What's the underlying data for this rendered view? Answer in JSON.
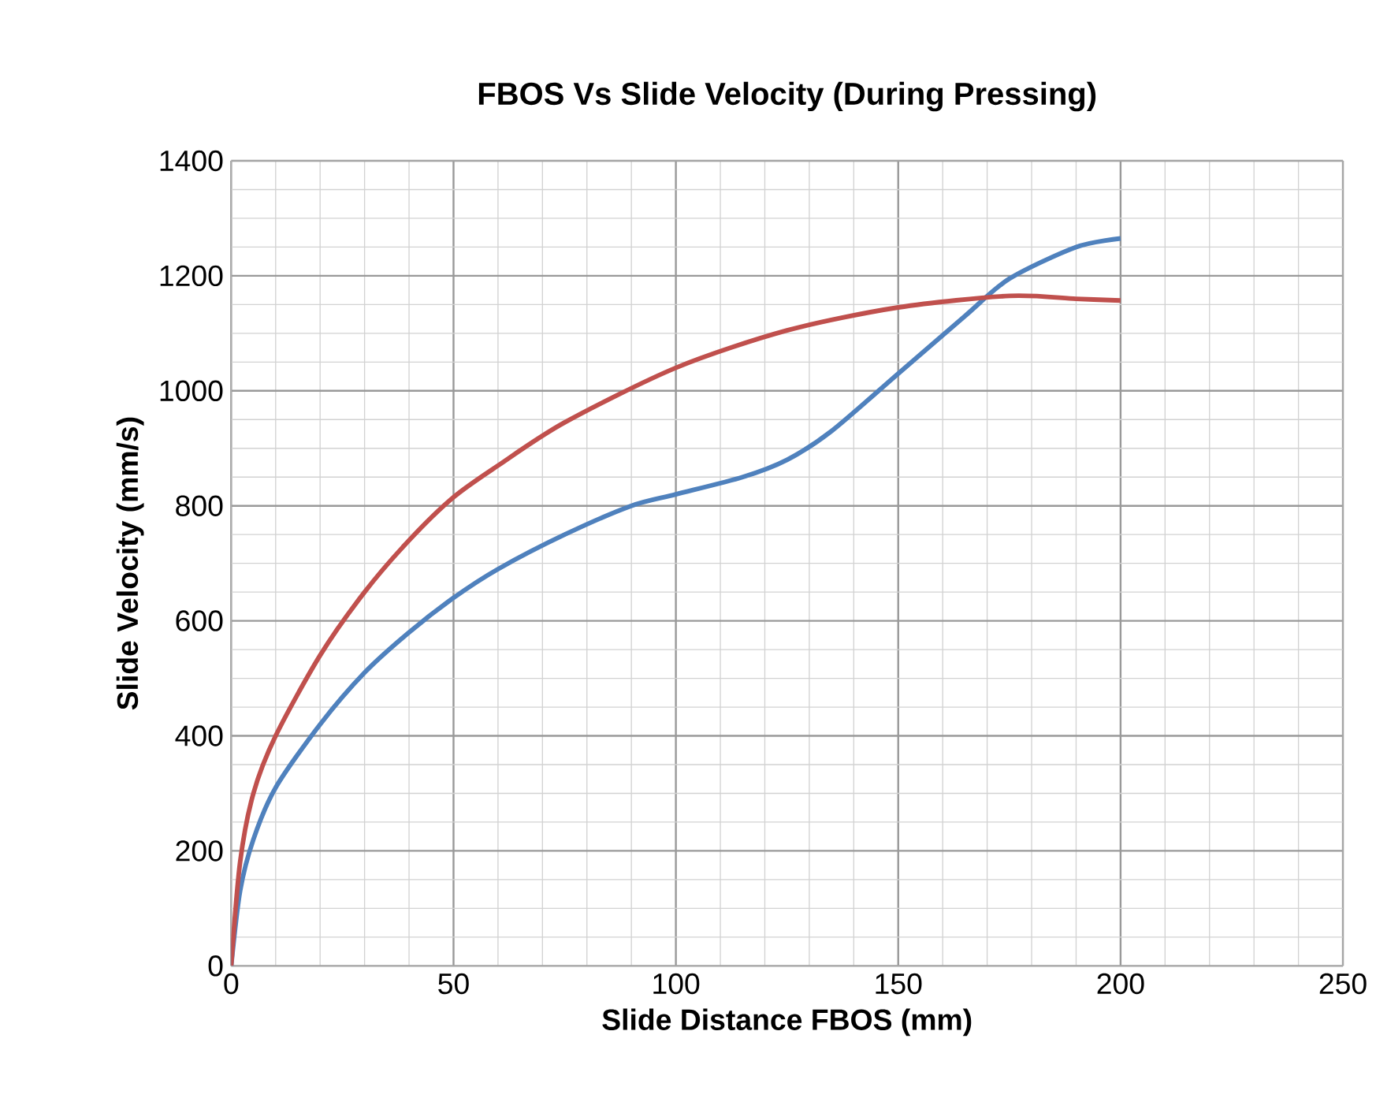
{
  "chart_data": {
    "type": "line",
    "title": "FBOS Vs Slide Velocity (During Pressing)",
    "xlabel": "Slide Distance FBOS (mm)",
    "ylabel": "Slide Velocity (mm/s)",
    "xlim": [
      0,
      250
    ],
    "xticks": [
      0,
      50,
      100,
      150,
      200,
      250
    ],
    "ylim": [
      0,
      1400
    ],
    "yticks": [
      0,
      200,
      400,
      600,
      800,
      1000,
      1200,
      1400
    ],
    "grid": true,
    "series": [
      {
        "color": "#4f81bd",
        "x": [
          0,
          2,
          5,
          10,
          20,
          30,
          40,
          50,
          60,
          75,
          90,
          100,
          115,
          125,
          135,
          150,
          165,
          175,
          190,
          200
        ],
        "values": [
          0,
          130,
          220,
          310,
          420,
          510,
          580,
          640,
          690,
          750,
          800,
          820,
          850,
          880,
          930,
          1030,
          1130,
          1195,
          1250,
          1265
        ]
      },
      {
        "color": "#c0504d",
        "x": [
          0,
          2,
          5,
          10,
          20,
          30,
          40,
          50,
          60,
          75,
          100,
          125,
          150,
          175,
          190,
          200
        ],
        "values": [
          0,
          180,
          300,
          400,
          540,
          650,
          740,
          815,
          870,
          945,
          1040,
          1105,
          1145,
          1165,
          1160,
          1157
        ]
      }
    ]
  }
}
